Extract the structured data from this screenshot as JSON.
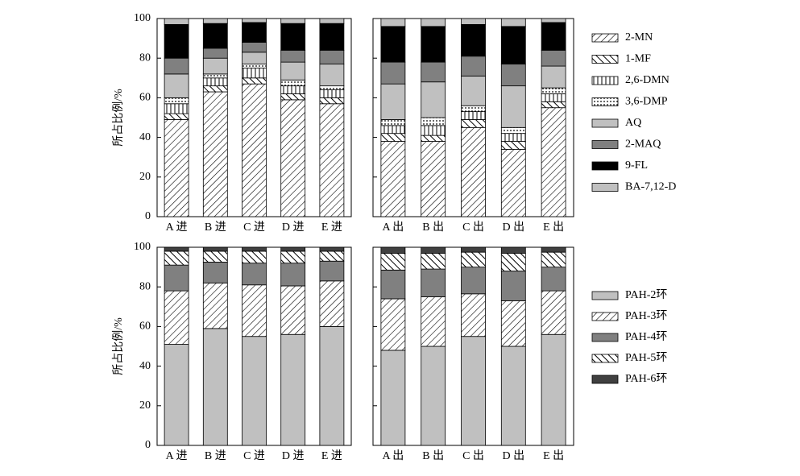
{
  "chart_data": [
    {
      "type": "bar",
      "stacked": true,
      "ylabel": "所占比例/%",
      "categories": [
        "A 进",
        "B 进",
        "C 进",
        "D 进",
        "E 进",
        "A 出",
        "B 出",
        "C 出",
        "D 出",
        "E 出"
      ],
      "ylim": [
        0,
        100
      ],
      "yticks": [
        0,
        20,
        40,
        60,
        80,
        100
      ],
      "series": [
        {
          "name": "2-MN",
          "color": "#ffffff",
          "hatch": "forward",
          "values": [
            49,
            63,
            67,
            59,
            57,
            38,
            38,
            45,
            34,
            55
          ]
        },
        {
          "name": "1-MF",
          "color": "#ffffff",
          "hatch": "back",
          "values": [
            3,
            3,
            3,
            3,
            3,
            4,
            3,
            4,
            4,
            3
          ]
        },
        {
          "name": "2,6-DMN",
          "color": "#ffffff",
          "hatch": "vertical",
          "values": [
            5,
            4,
            5,
            4,
            4,
            4,
            5,
            4,
            4,
            4
          ]
        },
        {
          "name": "3,6-DMP",
          "color": "#ffffff",
          "hatch": "dots",
          "values": [
            3,
            2,
            2,
            3,
            2,
            3,
            4,
            3,
            3,
            3
          ]
        },
        {
          "name": "AQ",
          "color": "#c0c0c0",
          "values": [
            12,
            8,
            6,
            9,
            11,
            18,
            18,
            15,
            21,
            11
          ]
        },
        {
          "name": "2-MAQ",
          "color": "#808080",
          "values": [
            8,
            5,
            5,
            6,
            7,
            11,
            10,
            10,
            11,
            8
          ]
        },
        {
          "name": "9-FL",
          "color": "#000000",
          "values": [
            17,
            12.5,
            10,
            13.5,
            13.5,
            18,
            18,
            16,
            19,
            14
          ]
        },
        {
          "name": "BA-7,12-D",
          "color": "#c0c0c0",
          "values": [
            3,
            2.5,
            2,
            2.5,
            2.5,
            4,
            4,
            3,
            4,
            2
          ]
        }
      ]
    },
    {
      "type": "bar",
      "stacked": true,
      "ylabel": "所占比例/%",
      "categories": [
        "A 进",
        "B 进",
        "C 进",
        "D 进",
        "E 进",
        "A 出",
        "B 出",
        "C 出",
        "D 出",
        "E 出"
      ],
      "ylim": [
        0,
        100
      ],
      "yticks": [
        0,
        20,
        40,
        60,
        80,
        100
      ],
      "series": [
        {
          "name": "PAH-2环",
          "color": "#c0c0c0",
          "values": [
            51,
            59,
            55,
            56,
            60,
            48,
            50,
            55,
            50,
            56
          ]
        },
        {
          "name": "PAH-3环",
          "color": "#ffffff",
          "hatch": "forward",
          "values": [
            27,
            23,
            26,
            24.5,
            23,
            26,
            25,
            21.5,
            23,
            22
          ]
        },
        {
          "name": "PAH-4环",
          "color": "#808080",
          "values": [
            13,
            10.5,
            11,
            11.5,
            10,
            14.5,
            14,
            13.5,
            15,
            12
          ]
        },
        {
          "name": "PAH-5环",
          "color": "#ffffff",
          "hatch": "back",
          "values": [
            7,
            5.5,
            6,
            6,
            5,
            8.5,
            8,
            7.5,
            9,
            7.5
          ]
        },
        {
          "name": "PAH-6环",
          "color": "#404040",
          "values": [
            2,
            2,
            2,
            2,
            2,
            3,
            3,
            2.5,
            3,
            2.5
          ]
        }
      ]
    }
  ]
}
